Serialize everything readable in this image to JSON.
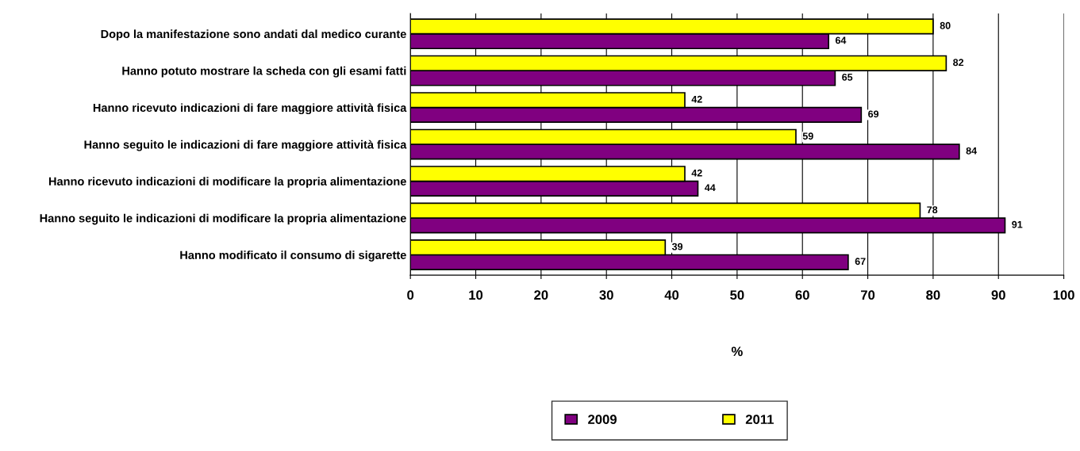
{
  "chart_data": {
    "type": "bar",
    "orientation": "horizontal",
    "xlabel": "%",
    "categories": [
      "Dopo la manifestazione sono andati dal medico curante",
      "Hanno potuto mostrare la scheda con gli esami fatti",
      "Hanno ricevuto indicazioni di fare maggiore attività fisica",
      "Hanno seguito le indicazioni di fare maggiore attività fisica",
      "Hanno ricevuto indicazioni di modificare la propria alimentazione",
      "Hanno seguito le indicazioni di modificare la propria alimentazione",
      "Hanno modificato il consumo di sigarette"
    ],
    "series": [
      {
        "name": "2009",
        "color": "#800080",
        "values": [
          64,
          65,
          69,
          84,
          44,
          91,
          67
        ]
      },
      {
        "name": "2011",
        "color": "#ffff00",
        "values": [
          80,
          82,
          42,
          59,
          42,
          78,
          39
        ]
      }
    ],
    "xlim": [
      0,
      100
    ],
    "xticks": [
      0,
      10,
      20,
      30,
      40,
      50,
      60,
      70,
      80,
      90,
      100
    ],
    "grid": "x",
    "legend": "bottom",
    "data_labels": true
  }
}
